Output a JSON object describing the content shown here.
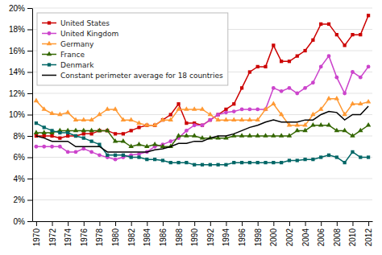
{
  "chart_data": {
    "type": "line",
    "x": [
      1970,
      1971,
      1972,
      1973,
      1974,
      1975,
      1976,
      1977,
      1978,
      1979,
      1980,
      1981,
      1982,
      1983,
      1984,
      1985,
      1986,
      1987,
      1988,
      1989,
      1990,
      1991,
      1992,
      1993,
      1994,
      1995,
      1996,
      1997,
      1998,
      1999,
      2000,
      2001,
      2002,
      2003,
      2004,
      2005,
      2006,
      2007,
      2008,
      2009,
      2010,
      2011,
      2012
    ],
    "series": [
      {
        "name": "United States",
        "color": "#cc0000",
        "marker": "square",
        "values": [
          8.0,
          8.0,
          8.0,
          7.8,
          8.0,
          8.0,
          8.2,
          8.2,
          8.5,
          8.5,
          8.2,
          8.2,
          8.5,
          8.8,
          9.0,
          9.0,
          9.5,
          10.0,
          11.0,
          9.2,
          9.2,
          9.0,
          9.5,
          10.0,
          10.5,
          11.0,
          12.5,
          14.0,
          14.5,
          14.5,
          16.5,
          15.0,
          15.0,
          15.5,
          16.0,
          17.0,
          18.5,
          18.5,
          17.5,
          16.5,
          17.5,
          17.5,
          19.3
        ]
      },
      {
        "name": "United Kingdom",
        "color": "#cc44cc",
        "marker": "circle",
        "values": [
          7.0,
          7.0,
          7.0,
          7.0,
          6.5,
          6.5,
          6.8,
          6.5,
          6.2,
          6.0,
          5.8,
          6.0,
          6.2,
          6.3,
          6.5,
          7.0,
          7.2,
          7.5,
          7.8,
          8.5,
          9.0,
          9.0,
          9.5,
          10.0,
          10.2,
          10.3,
          10.5,
          10.5,
          10.5,
          10.5,
          12.5,
          12.2,
          12.5,
          12.0,
          12.5,
          13.0,
          14.5,
          15.5,
          13.5,
          12.0,
          14.0,
          13.5,
          14.5
        ]
      },
      {
        "name": "Germany",
        "color": "#ff9933",
        "marker": "triangle",
        "values": [
          11.3,
          10.5,
          10.1,
          10.0,
          10.2,
          9.5,
          9.5,
          9.5,
          10.0,
          10.5,
          10.5,
          9.5,
          9.5,
          9.2,
          9.0,
          9.0,
          9.5,
          9.5,
          10.5,
          10.5,
          10.5,
          10.5,
          10.0,
          9.5,
          9.5,
          9.5,
          9.5,
          9.5,
          9.5,
          10.5,
          11.0,
          10.0,
          9.0,
          9.0,
          9.0,
          10.0,
          10.5,
          11.5,
          11.5,
          10.0,
          11.0,
          11.0,
          11.2
        ]
      },
      {
        "name": "France",
        "color": "#336600",
        "marker": "triangle",
        "values": [
          8.3,
          8.3,
          8.3,
          8.5,
          8.5,
          8.5,
          8.5,
          8.5,
          8.5,
          8.5,
          7.5,
          7.5,
          7.0,
          7.2,
          7.0,
          7.2,
          7.0,
          7.0,
          8.0,
          8.0,
          8.0,
          7.8,
          7.8,
          7.8,
          7.8,
          8.0,
          8.0,
          8.0,
          8.0,
          8.0,
          8.0,
          8.0,
          8.0,
          8.5,
          8.5,
          9.0,
          9.0,
          9.0,
          8.5,
          8.5,
          8.0,
          8.5,
          9.0
        ]
      },
      {
        "name": "Denmark",
        "color": "#006666",
        "marker": "square",
        "values": [
          9.2,
          8.8,
          8.5,
          8.3,
          8.3,
          8.0,
          7.8,
          7.5,
          7.2,
          6.2,
          6.2,
          6.2,
          6.0,
          6.0,
          5.8,
          5.8,
          5.7,
          5.5,
          5.5,
          5.5,
          5.3,
          5.3,
          5.3,
          5.3,
          5.3,
          5.5,
          5.5,
          5.5,
          5.5,
          5.5,
          5.5,
          5.5,
          5.7,
          5.7,
          5.8,
          5.8,
          6.0,
          6.2,
          6.0,
          5.5,
          6.5,
          6.0,
          6.0
        ]
      },
      {
        "name": "Constant perimeter average for 18 countries",
        "color": "#000000",
        "values": [
          8.0,
          7.8,
          7.5,
          7.5,
          7.5,
          7.0,
          7.0,
          7.0,
          7.0,
          6.5,
          6.5,
          6.5,
          6.5,
          6.5,
          6.5,
          6.7,
          6.8,
          7.0,
          7.3,
          7.3,
          7.5,
          7.5,
          7.8,
          8.0,
          8.0,
          8.2,
          8.5,
          8.8,
          9.0,
          9.3,
          9.5,
          9.3,
          9.3,
          9.3,
          9.5,
          9.5,
          10.0,
          10.3,
          10.2,
          9.5,
          10.0,
          10.0,
          10.8
        ]
      }
    ],
    "xlim": [
      1969.5,
      2012.5
    ],
    "xticks": [
      1970,
      1972,
      1974,
      1976,
      1978,
      1980,
      1982,
      1984,
      1986,
      1988,
      1990,
      1992,
      1994,
      1996,
      1998,
      2000,
      2002,
      2004,
      2006,
      2008,
      2010,
      2012
    ],
    "ylim": [
      0,
      20
    ],
    "yticks": [
      {
        "value": 0,
        "label": "0%"
      },
      {
        "value": 2,
        "label": "2%"
      },
      {
        "value": 4,
        "label": "4%"
      },
      {
        "value": 6,
        "label": "6%"
      },
      {
        "value": 8,
        "label": "8%"
      },
      {
        "value": 10,
        "label": "10%"
      },
      {
        "value": 12,
        "label": "12%"
      },
      {
        "value": 14,
        "label": "14%"
      },
      {
        "value": 16,
        "label": "16%"
      },
      {
        "value": 18,
        "label": "18%"
      },
      {
        "value": 20,
        "label": "20%"
      }
    ],
    "grid": true,
    "legend": "top-left"
  }
}
